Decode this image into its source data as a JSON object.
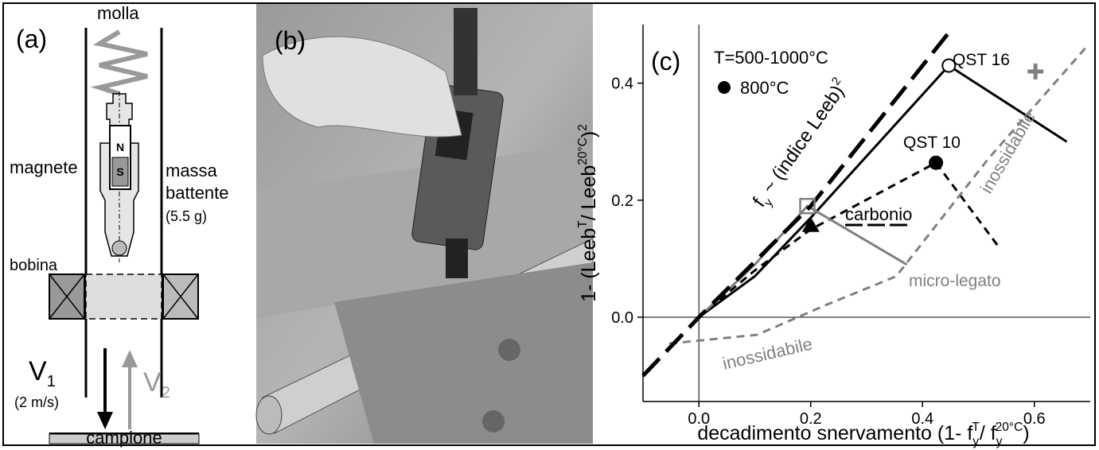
{
  "panel_a": {
    "label": "(a)",
    "spring": "molla",
    "magnet": "magnete",
    "mass": [
      "massa",
      "battente",
      "(5.5 g)"
    ],
    "coil": "bobina",
    "north": "N",
    "south": "S",
    "v1": [
      "V",
      "1"
    ],
    "v1_speed": "(2 m/s)",
    "v2": [
      "V",
      "2"
    ],
    "sample": "campione"
  },
  "panel_b": {
    "label": "(b)"
  },
  "chart_data": {
    "type": "line",
    "panel_label": "(c)",
    "legend_title": "T=500-1000°C",
    "legend_entries": [
      {
        "label": "800°C",
        "marker": "filled-circle",
        "color": "#000000"
      }
    ],
    "x_label": [
      "decadimento snervamento (1- f",
      "y",
      "T",
      "/ f",
      "y",
      "20°C",
      ")"
    ],
    "y_label": [
      "1- (Leeb",
      "T",
      "/ Leeb",
      "20°C",
      ")",
      "2"
    ],
    "xlim": [
      -0.1,
      0.7
    ],
    "ylim": [
      -0.144,
      0.5
    ],
    "xticks": [
      {
        "value": 0,
        "label": "0.0"
      },
      {
        "value": 0.2,
        "label": "0.2"
      },
      {
        "value": 0.4,
        "label": "0.4"
      },
      {
        "value": 0.6,
        "label": "0.6"
      }
    ],
    "yticks": [
      {
        "value": 0,
        "label": "0.0"
      },
      {
        "value": 0.2,
        "label": "0.2"
      },
      {
        "value": 0.4,
        "label": "0.4"
      }
    ],
    "zero_lines": true,
    "grid": false,
    "series": [
      {
        "name": "QST 16",
        "color": "#000000",
        "dash": "solid",
        "x": [
          0,
          0.1,
          0.2,
          0.447,
          0.658
        ],
        "values": [
          0,
          0.07,
          0.17,
          0.43,
          0.3
        ]
      },
      {
        "name": "QST 10",
        "color": "#000000",
        "dash": "dashed",
        "x": [
          0,
          0.1,
          0.2,
          0.424,
          0.538
        ],
        "values": [
          0,
          0.08,
          0.15,
          0.264,
          0.118
        ]
      },
      {
        "name": "micro-legato",
        "color": "#808080",
        "dash": "solid",
        "x": [
          0,
          0.1,
          0.194,
          0.372
        ],
        "values": [
          0,
          0.09,
          0.19,
          0.09
        ]
      },
      {
        "name": "inossidabile",
        "color": "#808080",
        "dash": "dashed",
        "x": [
          -0.053,
          0.104,
          0.225,
          0.353,
          0.517,
          0.695
        ],
        "values": [
          -0.045,
          -0.03,
          0.02,
          0.07,
          0.27,
          0.464
        ]
      },
      {
        "color": "#000000",
        "dash": "long-dashed",
        "x": [
          -0.1,
          0,
          0.2,
          0.45
        ],
        "values": [
          -0.1,
          0,
          0.19,
          0.49
        ]
      }
    ],
    "points": [
      {
        "x": 0.447,
        "y": 0.43,
        "marker": "open-circle",
        "color": "#000000"
      },
      {
        "x": 0.424,
        "y": 0.264,
        "marker": "filled-circle",
        "color": "#000000"
      },
      {
        "x": 0.194,
        "y": 0.19,
        "marker": "open-square",
        "color": "#808080"
      },
      {
        "x": 0.2,
        "y": 0.158,
        "marker": "triangle",
        "color": "#000000"
      },
      {
        "x": 0.602,
        "y": 0.42,
        "marker": "plus",
        "color": "#808080"
      }
    ],
    "annotations": {
      "fy": [
        "f",
        "y",
        " ~ (indice Leeb)",
        "2"
      ],
      "carbon": "carbonio",
      "stainless": "inossidabile"
    }
  }
}
